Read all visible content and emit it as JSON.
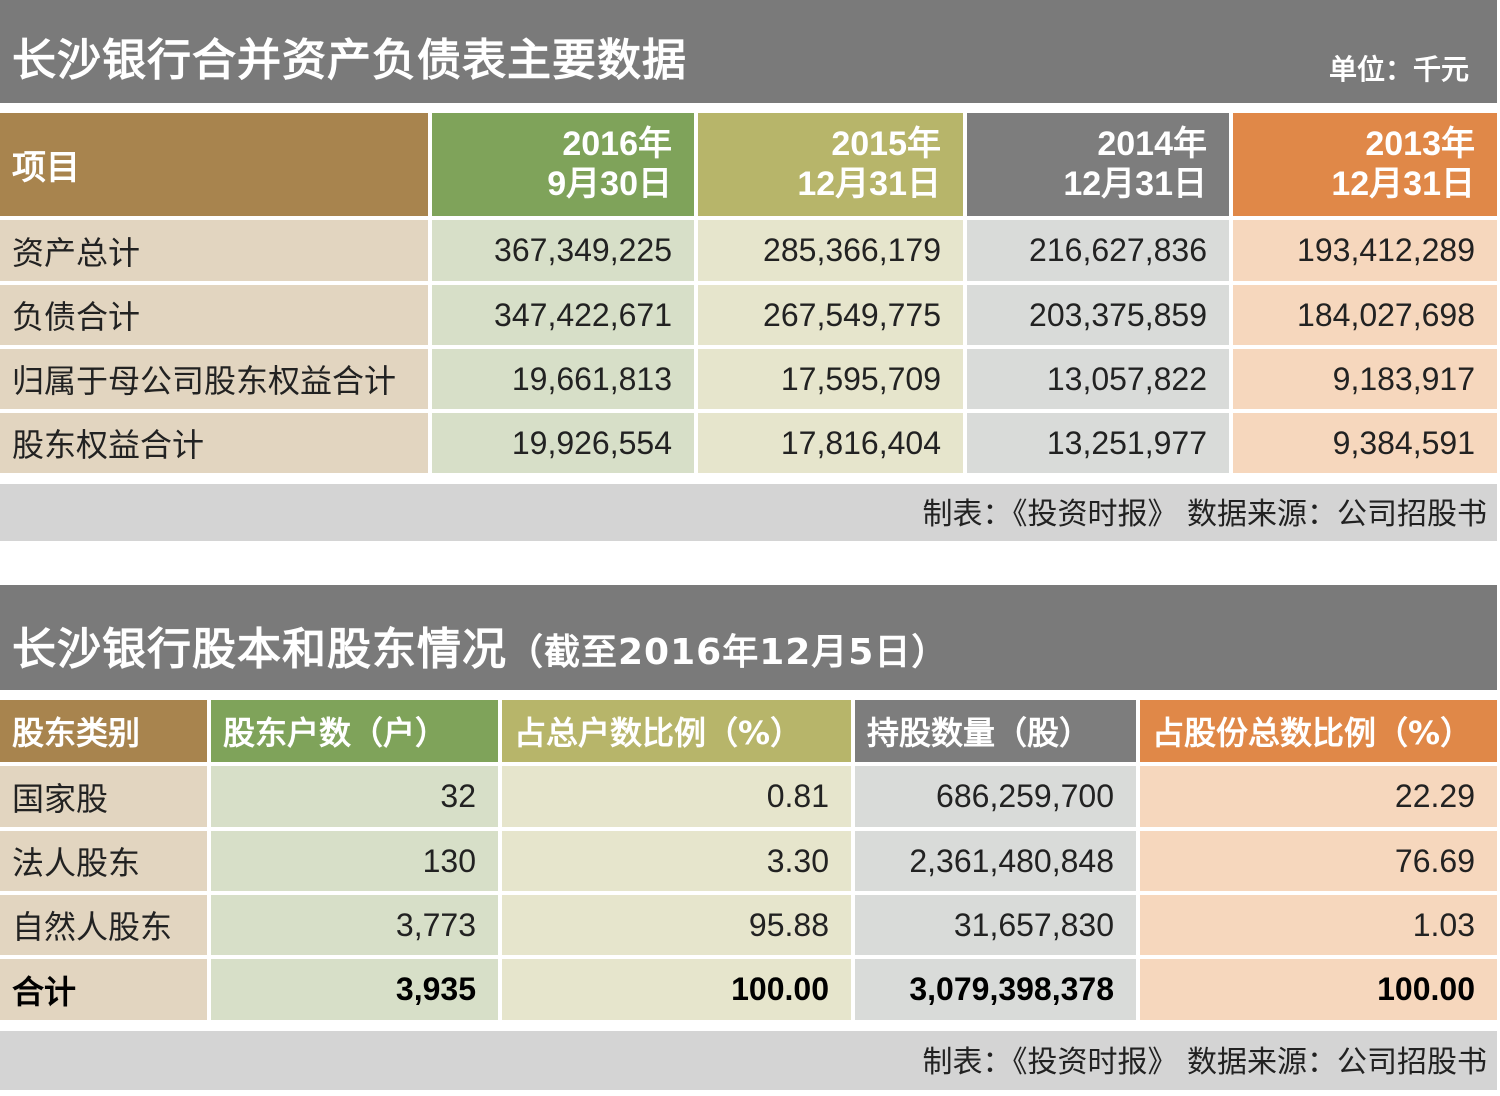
{
  "table1": {
    "title": "长沙银行合并资产负债表主要数据",
    "unit": "单位：千元",
    "headers": [
      "项目",
      [
        "2016年",
        "9月30日"
      ],
      [
        "2015年",
        "12月31日"
      ],
      [
        "2014年",
        "12月31日"
      ],
      [
        "2013年",
        "12月31日"
      ]
    ],
    "rows": [
      [
        "资产总计",
        "367,349,225",
        "285,366,179",
        "216,627,836",
        "193,412,289"
      ],
      [
        "负债合计",
        "347,422,671",
        "267,549,775",
        "203,375,859",
        "184,027,698"
      ],
      [
        "归属于母公司股东权益合计",
        "19,661,813",
        "17,595,709",
        "13,057,822",
        "9,183,917"
      ],
      [
        "股东权益合计",
        "19,926,554",
        "17,816,404",
        "13,251,977",
        "9,384,591"
      ]
    ],
    "footer": "制表：《投资时报》 数据来源：公司招股书"
  },
  "table2": {
    "title": "长沙银行股本和股东情况",
    "subtitle": "（截至2016年12月5日）",
    "headers": [
      "股东类别",
      "股东户数（户）",
      "占总户数比例（%）",
      "持股数量（股）",
      "占股份总数比例（%）"
    ],
    "rows": [
      [
        "国家股",
        "32",
        "0.81",
        "686,259,700",
        "22.29"
      ],
      [
        "法人股东",
        "130",
        "3.30",
        "2,361,480,848",
        "76.69"
      ],
      [
        "自然人股东",
        "3,773",
        "95.88",
        "31,657,830",
        "1.03"
      ],
      [
        "合计",
        "3,935",
        "100.00",
        "3,079,398,378",
        "100.00"
      ]
    ],
    "footer": "制表：《投资时报》 数据来源：公司招股书"
  },
  "colors": {
    "header_bar": "#7a7a7a",
    "col_headers": [
      "#a8844e",
      "#7fa35a",
      "#b7b56a",
      "#7d7d7d",
      "#e08848"
    ],
    "col_cells": [
      "#e2d5c0",
      "#d7dfc8",
      "#e6e5cc",
      "#d9dbd9",
      "#f6d7bd"
    ],
    "footer": "#d4d4d4"
  }
}
